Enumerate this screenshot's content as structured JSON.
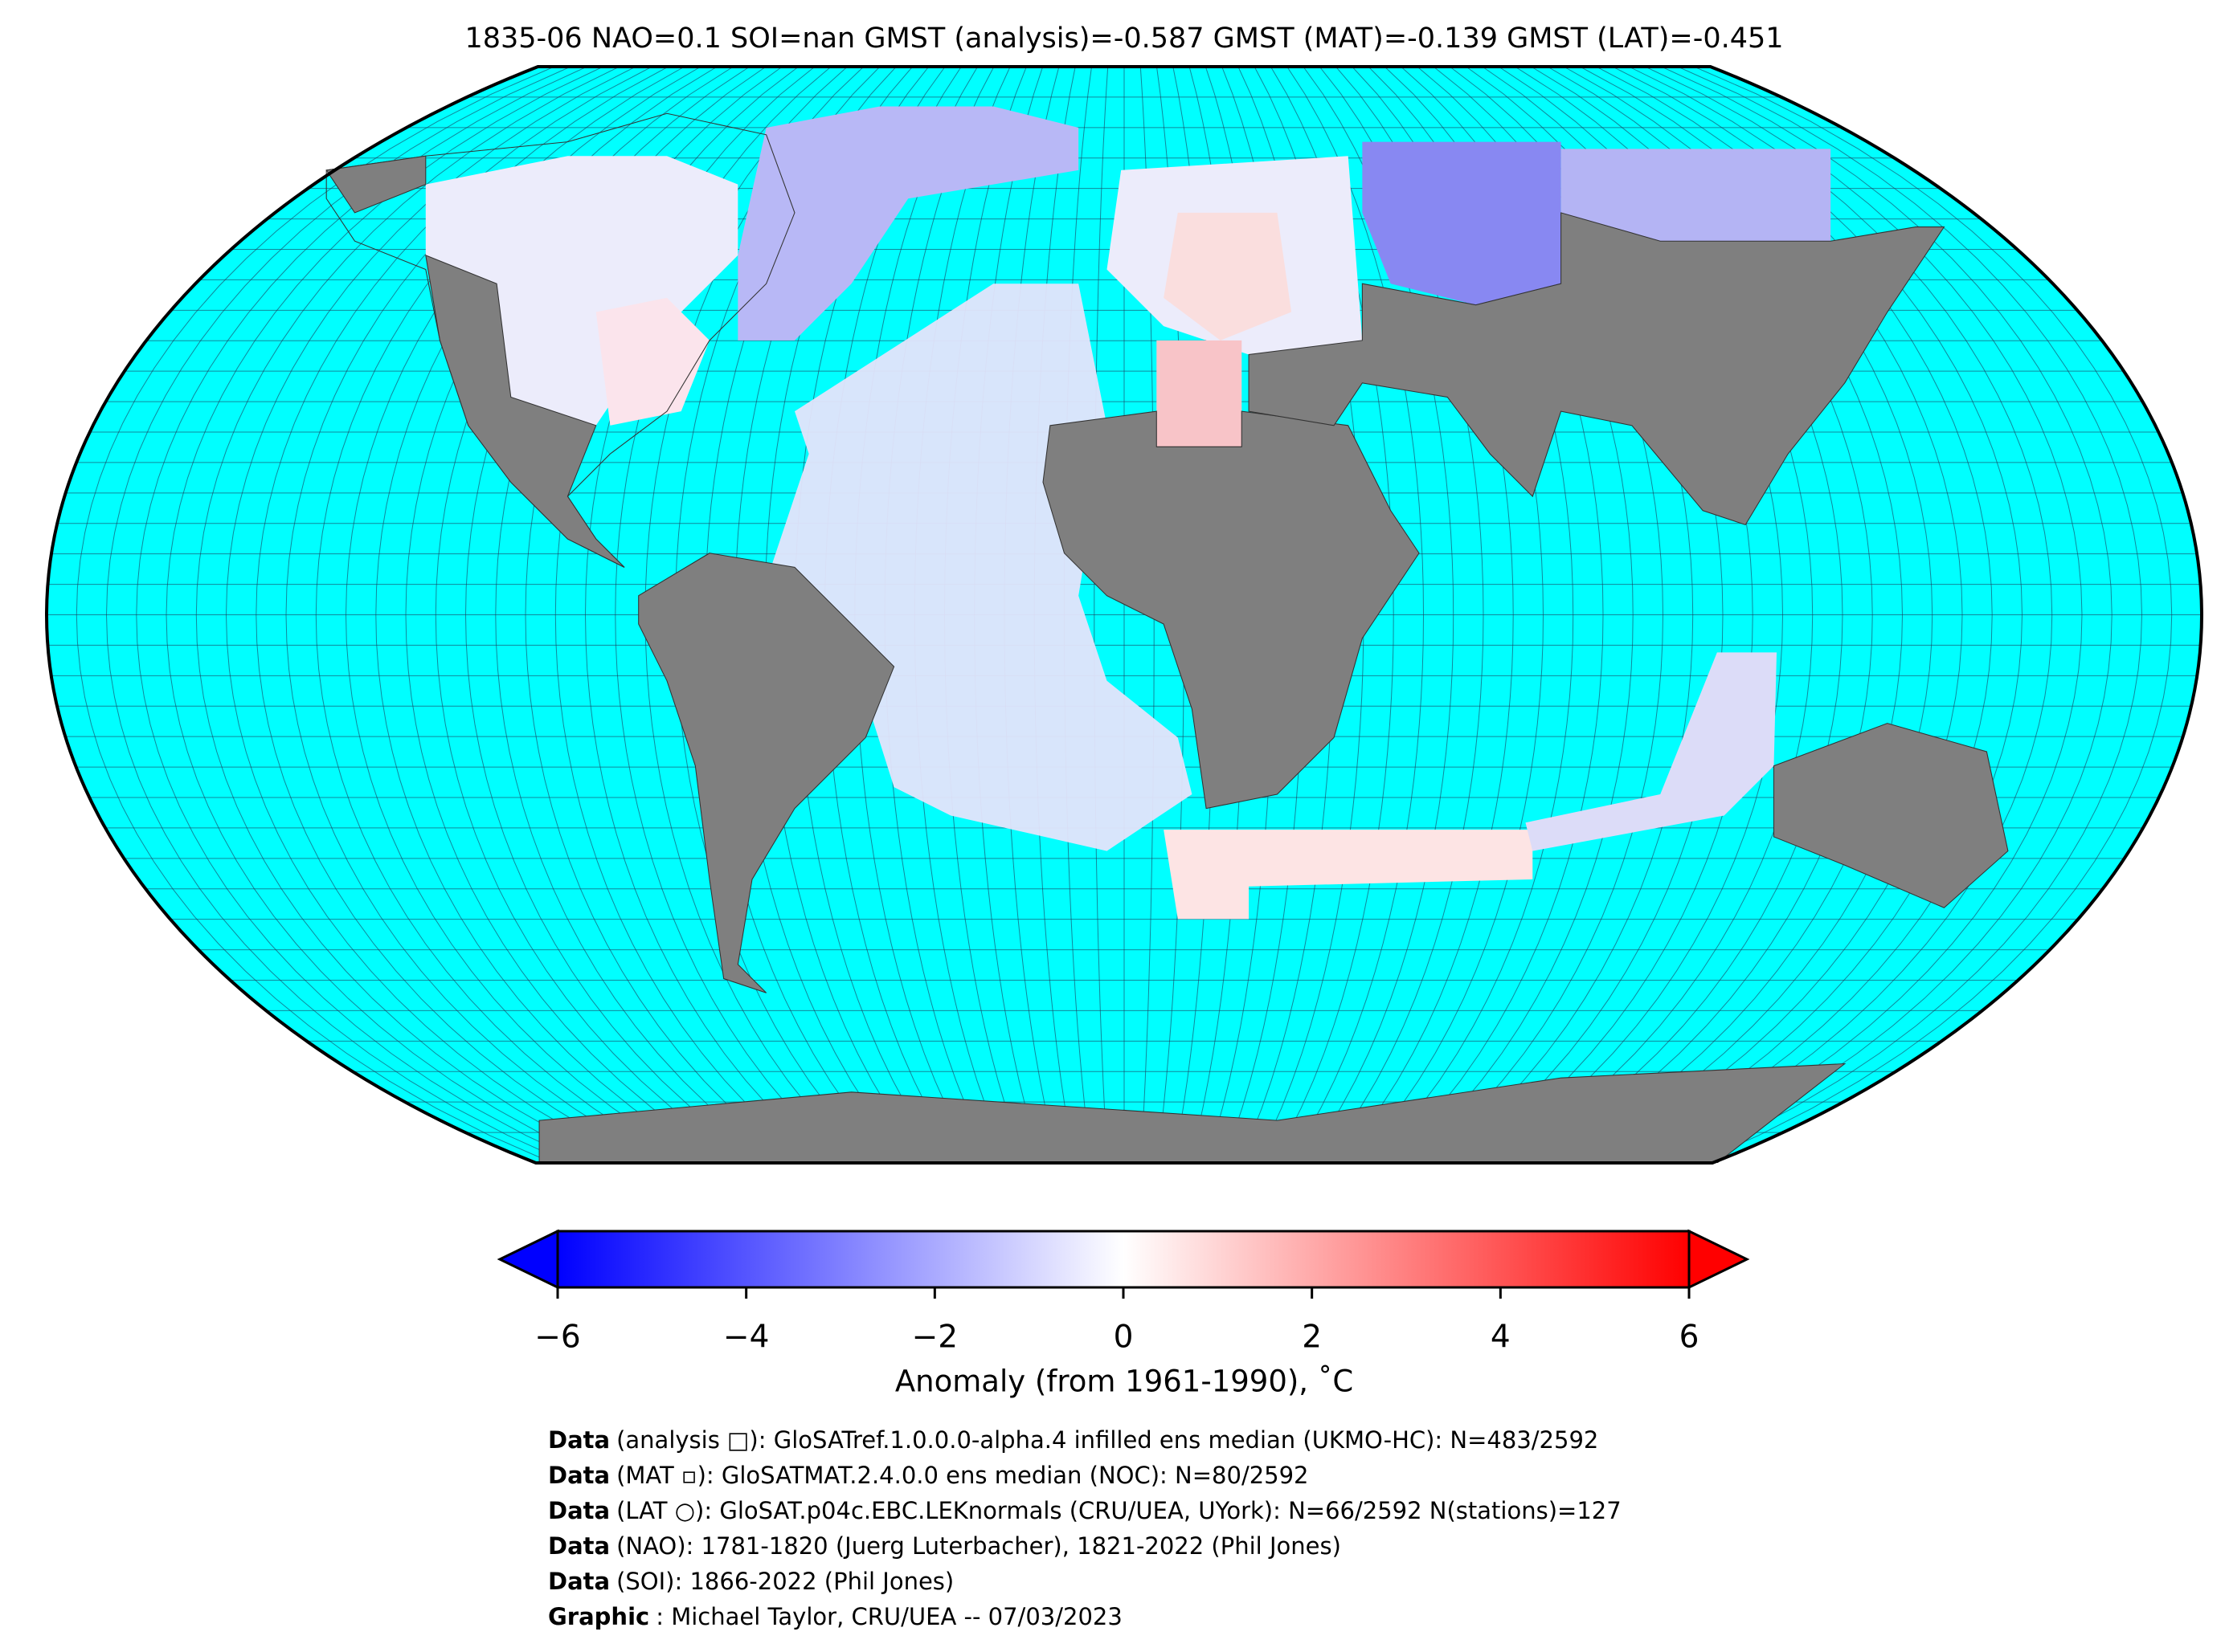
{
  "title": "1835-06 NAO=0.1 SOI=nan GMST (analysis)=-0.587 GMST (MAT)=-0.139 GMST (LAT)=-0.451",
  "colorbar": {
    "lim": [
      -6,
      6
    ],
    "ticks": [
      {
        "value": -6,
        "label": "−6"
      },
      {
        "value": -4,
        "label": "−4"
      },
      {
        "value": -2,
        "label": "−2"
      },
      0,
      2,
      4,
      6
    ],
    "label": "Anomaly (from 1961-1990), ˚C",
    "colors": [
      "#0000ff",
      "#ffffff",
      "#ff0000"
    ]
  },
  "credits": [
    {
      "label": "Data",
      "text": "(analysis □): GloSATref.1.0.0.0-alpha.4 infilled ens median (UKMO-HC): N=483/2592"
    },
    {
      "label": "Data",
      "text": "(MAT ▫): GloSATMAT.2.4.0.0 ens median (NOC): N=80/2592"
    },
    {
      "label": "Data",
      "text": "(LAT ○): GloSAT.p04c.EBC.LEKnormals (CRU/UEA, UYork): N=66/2592 N(stations)=127"
    },
    {
      "label": "Data",
      "text": "(NAO): 1781-1820 (Juerg Luterbacher), 1821-2022 (Phil Jones)"
    },
    {
      "label": "Data",
      "text": "(SOI): 1866-2022 (Phil Jones)"
    },
    {
      "label": "Graphic",
      "text": ": Michael Taylor, CRU/UEA -- 07/03/2023"
    }
  ]
}
